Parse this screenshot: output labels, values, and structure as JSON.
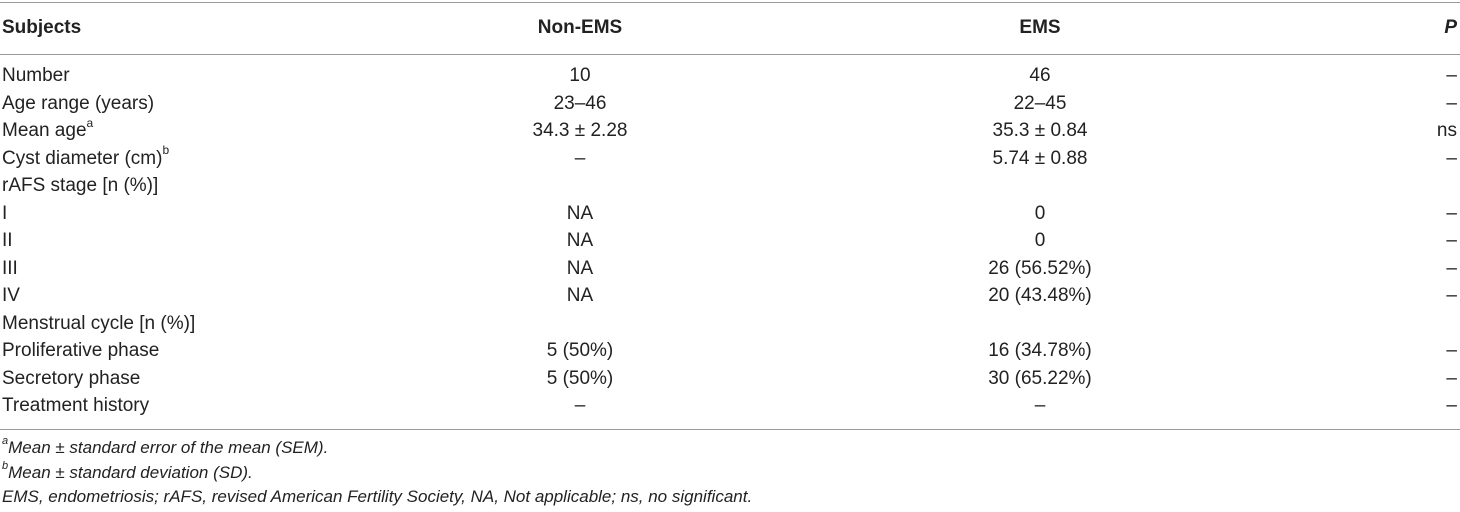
{
  "table": {
    "headers": {
      "subjects": "Subjects",
      "non_ems": "Non-EMS",
      "ems": "EMS",
      "p": "P"
    },
    "rows": [
      {
        "label": "Number",
        "sup": "",
        "non_ems": "10",
        "ems": "46",
        "p": "–"
      },
      {
        "label": "Age range (years)",
        "sup": "",
        "non_ems": "23–46",
        "ems": "22–45",
        "p": "–"
      },
      {
        "label": "Mean age",
        "sup": "a",
        "non_ems": "34.3 ± 2.28",
        "ems": "35.3 ± 0.84",
        "p": "ns"
      },
      {
        "label": "Cyst diameter (cm)",
        "sup": "b",
        "non_ems": "–",
        "ems": "5.74 ± 0.88",
        "p": "–"
      },
      {
        "label": "rAFS stage [n (%)]",
        "sup": "",
        "non_ems": "",
        "ems": "",
        "p": ""
      },
      {
        "label": "I",
        "sup": "",
        "non_ems": "NA",
        "ems": "0",
        "p": "–"
      },
      {
        "label": "II",
        "sup": "",
        "non_ems": "NA",
        "ems": "0",
        "p": "–"
      },
      {
        "label": "III",
        "sup": "",
        "non_ems": "NA",
        "ems": "26 (56.52%)",
        "p": "–"
      },
      {
        "label": "IV",
        "sup": "",
        "non_ems": "NA",
        "ems": "20 (43.48%)",
        "p": "–"
      },
      {
        "label": "Menstrual cycle [n (%)]",
        "sup": "",
        "non_ems": "",
        "ems": "",
        "p": ""
      },
      {
        "label": "Proliferative phase",
        "sup": "",
        "non_ems": "5 (50%)",
        "ems": "16 (34.78%)",
        "p": "–"
      },
      {
        "label": "Secretory phase",
        "sup": "",
        "non_ems": "5 (50%)",
        "ems": "30 (65.22%)",
        "p": "–"
      },
      {
        "label": "Treatment history",
        "sup": "",
        "non_ems": "–",
        "ems": "–",
        "p": "–"
      }
    ]
  },
  "footnotes": {
    "a_mark": "a",
    "a_text": "Mean ± standard error of the mean (SEM).",
    "b_mark": "b",
    "b_text": "Mean ± standard deviation (SD).",
    "abbreviations": "EMS, endometriosis; rAFS, revised American Fertility Society, NA, Not applicable; ns, no significant."
  }
}
